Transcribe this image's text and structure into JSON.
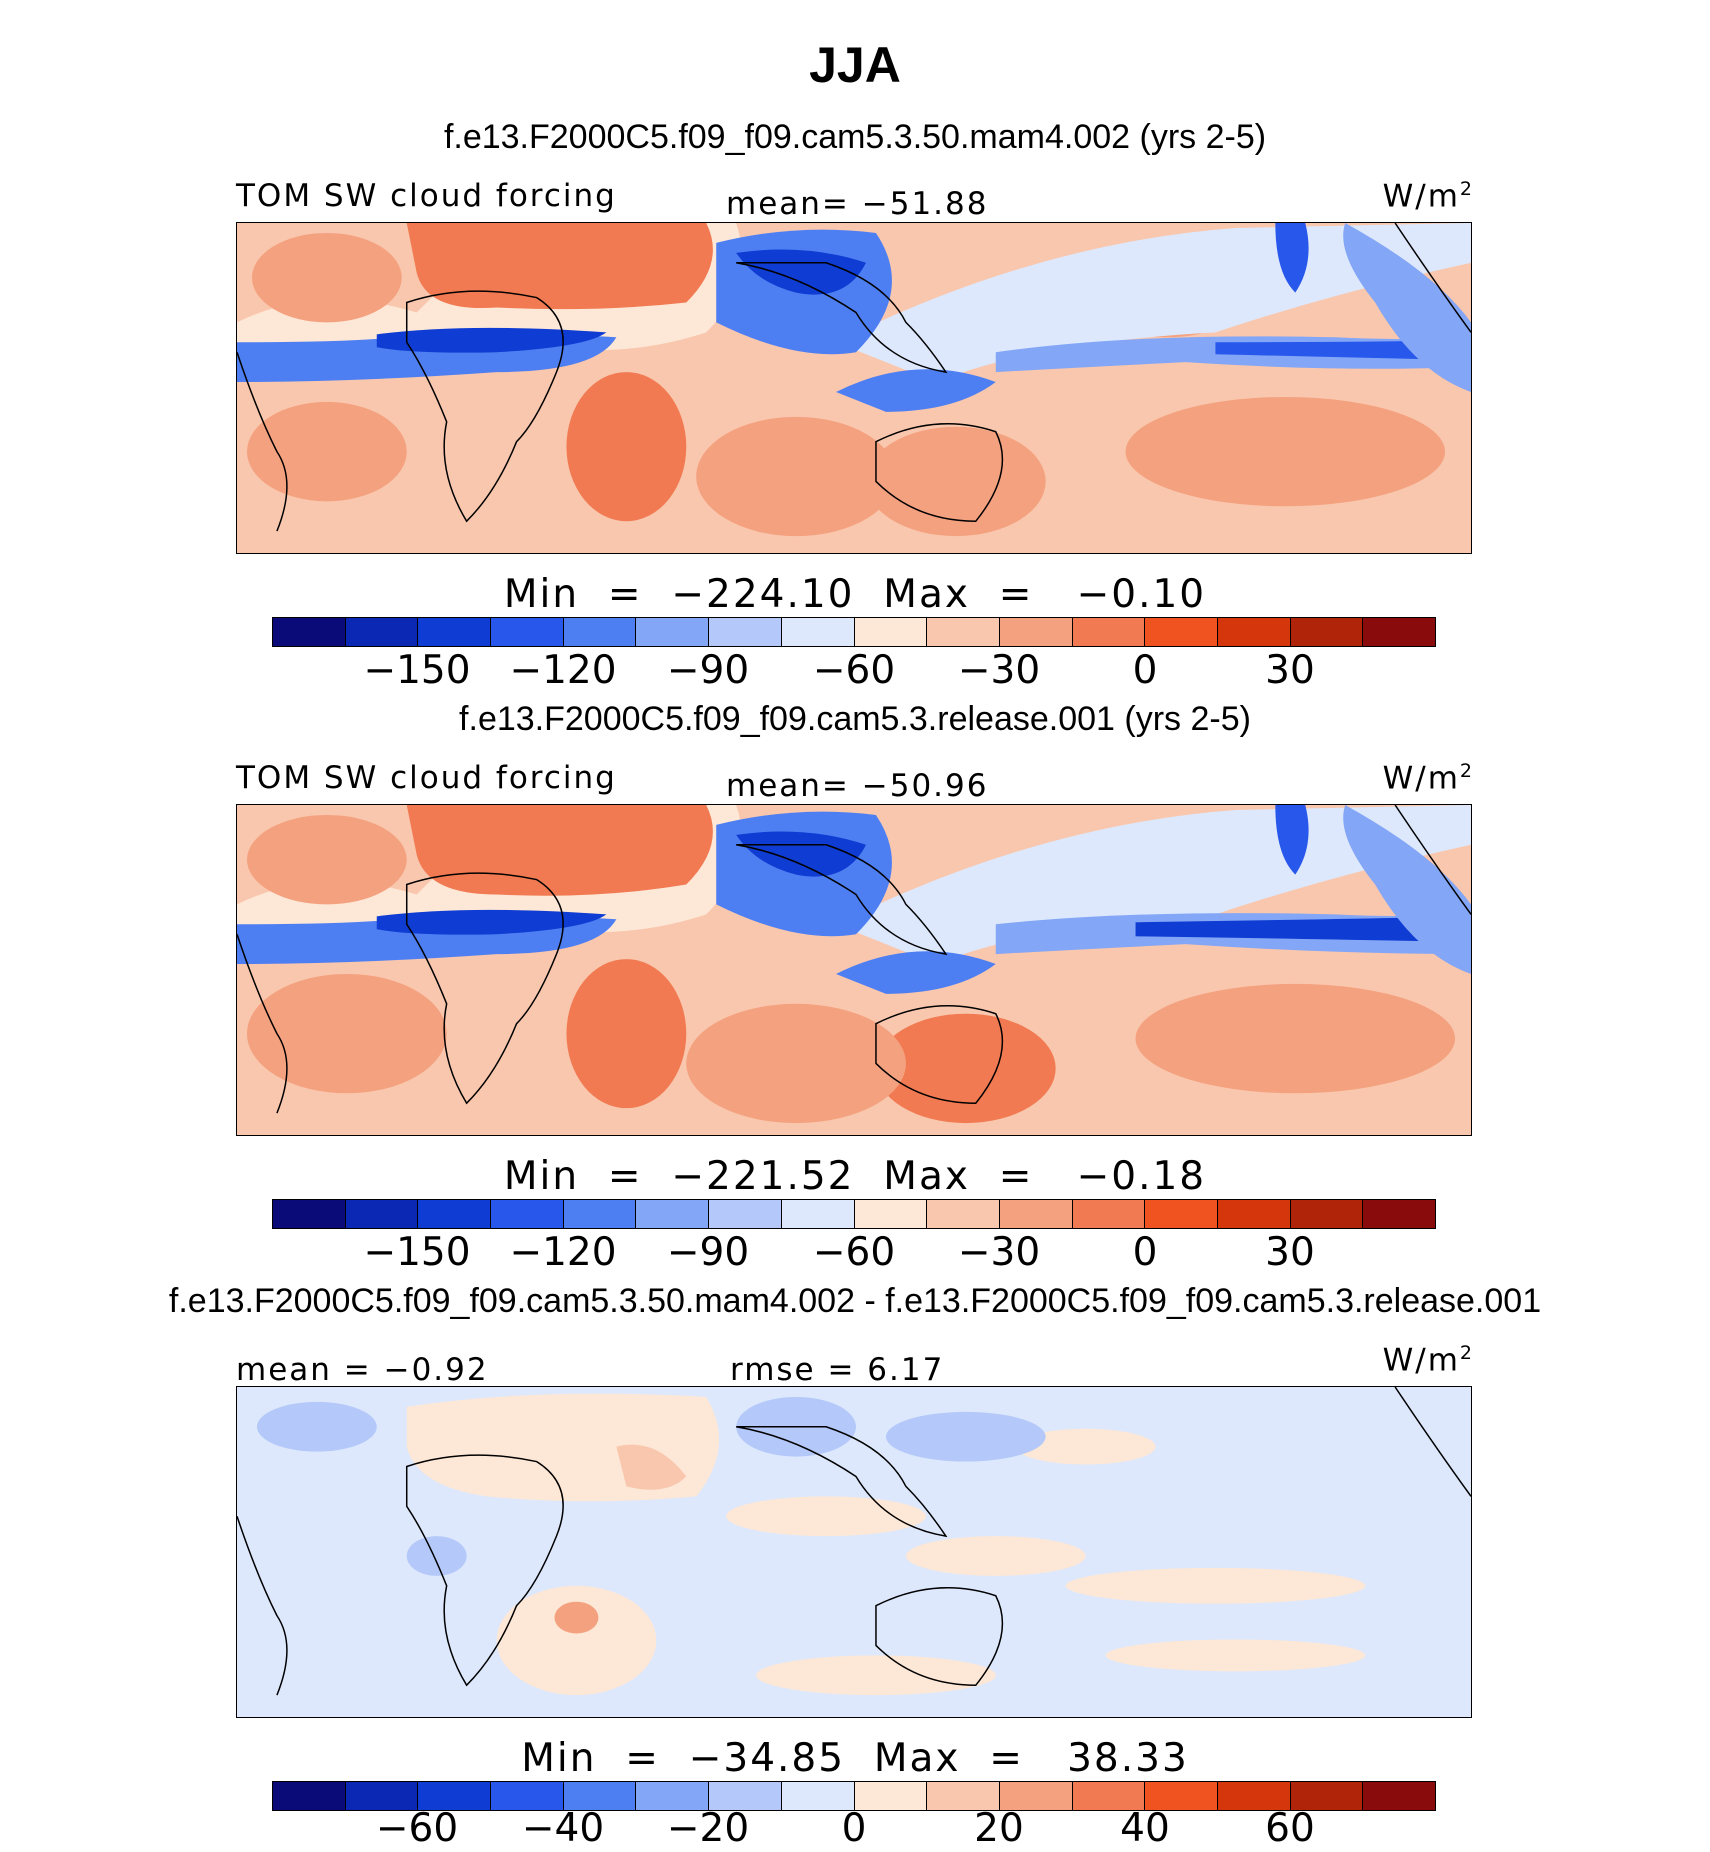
{
  "title": "JJA",
  "colorbar_colors": [
    "#0a0a78",
    "#0a28b4",
    "#0f3cd2",
    "#2857ec",
    "#4e7ff2",
    "#83a6f6",
    "#b4c9f9",
    "#dde8fc",
    "#fde7d6",
    "#f9c7ad",
    "#f4a17f",
    "#f17a52",
    "#f0531f",
    "#d6360c",
    "#b0250a",
    "#8a0b0b"
  ],
  "panels": [
    {
      "case": "f.e13.F2000C5.f09_f09.cam5.3.50.mam4.002 (yrs 2-5)",
      "left_label": "TOM SW cloud forcing",
      "center_label": "mean=  −51.88",
      "units": "W/m",
      "units_sup": "2",
      "minmax": "Min  =  −224.10  Max  =   −0.10",
      "ticks": [
        "−150",
        "−120",
        "−90",
        "−60",
        "−30",
        "0",
        "30"
      ],
      "mean": -51.88,
      "min": -224.1,
      "max": -0.1
    },
    {
      "case": "f.e13.F2000C5.f09_f09.cam5.3.release.001 (yrs 2-5)",
      "left_label": "TOM SW cloud forcing",
      "center_label": "mean=  −50.96",
      "units": "W/m",
      "units_sup": "2",
      "minmax": "Min  =  −221.52  Max  =   −0.18",
      "ticks": [
        "−150",
        "−120",
        "−90",
        "−60",
        "−30",
        "0",
        "30"
      ],
      "mean": -50.96,
      "min": -221.52,
      "max": -0.18
    },
    {
      "case": "f.e13.F2000C5.f09_f09.cam5.3.50.mam4.002 - f.e13.F2000C5.f09_f09.cam5.3.release.001",
      "left_label": "mean  =   −0.92",
      "center_label": "rmse  =    6.17",
      "units": "W/m",
      "units_sup": "2",
      "minmax": "Min  =  −34.85  Max  =   38.33",
      "ticks": [
        "−60",
        "−40",
        "−20",
        "0",
        "20",
        "40",
        "60"
      ],
      "mean": -0.92,
      "rmse": 6.17,
      "min": -34.85,
      "max": 38.33
    }
  ]
}
